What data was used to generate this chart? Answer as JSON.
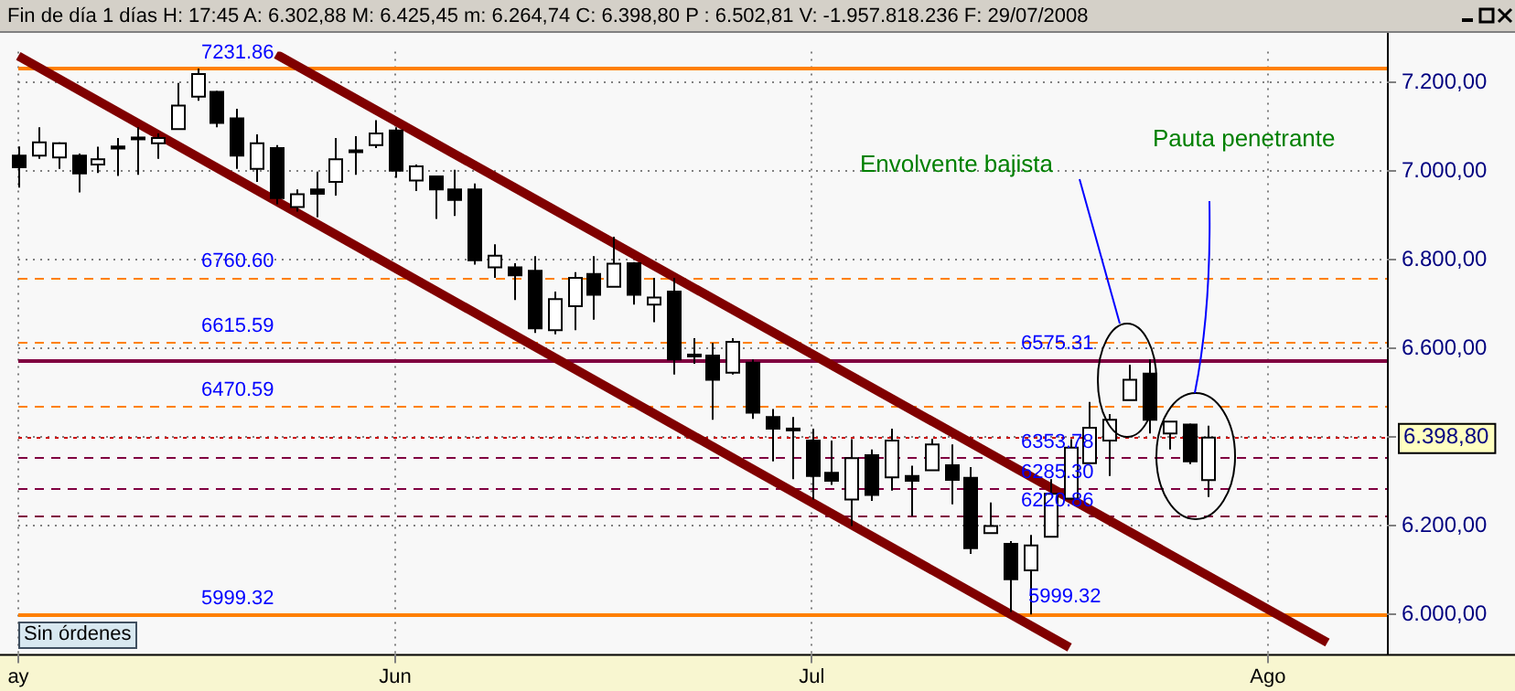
{
  "chart_data": {
    "type": "candlestick",
    "title": "Fin de día 1 días H: 17:45 A: 6.302,88 M: 6.425,45 m: 6.264,74 C: 6.398,80 P : 6.502,81 V: -1.957.818.236 F: 29/07/2008",
    "categories": [
      "ay",
      null,
      null,
      null,
      null,
      null,
      null,
      null,
      null,
      null,
      null,
      null,
      null,
      null,
      null,
      null,
      null,
      null,
      null,
      "Jun",
      null,
      null,
      null,
      null,
      null,
      null,
      null,
      null,
      null,
      null,
      null,
      null,
      null,
      null,
      null,
      null,
      null,
      null,
      null,
      null,
      "Jul",
      null,
      null,
      null,
      null,
      null,
      null,
      null,
      null,
      null,
      null,
      null,
      null,
      null,
      null,
      null,
      null,
      null,
      null,
      null,
      null,
      null,
      null,
      "Ago",
      null,
      null,
      null,
      null,
      null,
      null
    ],
    "ohlc": [
      [
        7035,
        7056,
        6963,
        7009
      ],
      [
        7035,
        7099,
        7028,
        7065
      ],
      [
        7031,
        7065,
        7005,
        7063
      ],
      [
        7035,
        7040,
        6952,
        6995
      ],
      [
        7015,
        7055,
        6996,
        7027
      ],
      [
        7056,
        7075,
        6989,
        7051
      ],
      [
        7076,
        7099,
        6992,
        7074
      ],
      [
        7063,
        7085,
        7028,
        7075
      ],
      [
        7095,
        7199,
        7095,
        7148
      ],
      [
        7168,
        7231.86,
        7159,
        7219
      ],
      [
        7179,
        7181,
        7099,
        7109
      ],
      [
        7119,
        7141,
        7005,
        7035
      ],
      [
        7005,
        7083,
        6976,
        7063
      ],
      [
        7052,
        7059,
        6925,
        6939
      ],
      [
        6919,
        6959,
        6909,
        6948
      ],
      [
        6959,
        6999,
        6896,
        6949
      ],
      [
        6976,
        7075,
        6945,
        7027
      ],
      [
        7047,
        7079,
        6992,
        7045
      ],
      [
        7059,
        7115,
        7052,
        7085
      ],
      [
        7092,
        7099,
        6985,
        7001
      ],
      [
        6979,
        7015,
        6955,
        7011
      ],
      [
        6988,
        6990,
        6892,
        6959
      ],
      [
        6959,
        7003,
        6899,
        6935
      ],
      [
        6959,
        6972,
        6789,
        6799
      ],
      [
        6783,
        6835,
        6759,
        6809
      ],
      [
        6783,
        6792,
        6709,
        6765
      ],
      [
        6775,
        6808,
        6635,
        6645
      ],
      [
        6641,
        6728,
        6632,
        6711
      ],
      [
        6695,
        6772,
        6641,
        6759
      ],
      [
        6768,
        6808,
        6665,
        6721
      ],
      [
        6739,
        6852,
        6739,
        6791
      ],
      [
        6792,
        6795,
        6699,
        6721
      ],
      [
        6699,
        6759,
        6659,
        6715
      ],
      [
        6728,
        6759,
        6541,
        6575
      ],
      [
        6586,
        6623,
        6565,
        6585
      ],
      [
        6584,
        6612,
        6439,
        6529
      ],
      [
        6545,
        6623,
        6541,
        6615
      ],
      [
        6568,
        6575,
        6441,
        6455
      ],
      [
        6445,
        6463,
        6345,
        6419
      ],
      [
        6419,
        6445,
        6305,
        6417
      ],
      [
        6392,
        6419,
        6259,
        6312
      ],
      [
        6319,
        6392,
        6292,
        6301
      ],
      [
        6259,
        6395,
        6199,
        6352
      ],
      [
        6359,
        6372,
        6256,
        6269
      ],
      [
        6309,
        6419,
        6279,
        6392
      ],
      [
        6312,
        6335,
        6221,
        6301
      ],
      [
        6325,
        6396,
        6325,
        6383
      ],
      [
        6336,
        6383,
        6248,
        6303
      ],
      [
        6308,
        6332,
        6136,
        6149
      ],
      [
        6183,
        6252,
        6183,
        6199
      ],
      [
        6159,
        6165,
        6005,
        6079
      ],
      [
        6099,
        6179,
        5999.32,
        6155
      ],
      [
        6175,
        6305,
        6175,
        6272
      ],
      [
        6261,
        6395,
        6259,
        6376
      ],
      [
        6341,
        6479,
        6341,
        6421
      ],
      [
        6392,
        6452,
        6312,
        6439
      ],
      [
        6483,
        6563,
        6483,
        6529
      ],
      [
        6543,
        6575.31,
        6408,
        6439
      ],
      [
        6408,
        6435,
        6372,
        6435
      ],
      [
        6428,
        6430,
        6339,
        6345
      ],
      [
        6302.88,
        6425.45,
        6264.74,
        6398.8
      ],
      null,
      null,
      null,
      null,
      null,
      null,
      null,
      null,
      null
    ],
    "series": [
      {
        "type": "line",
        "color": "#800000",
        "values": [
          null,
          null,
          null,
          null,
          null,
          null,
          null,
          null,
          null,
          null,
          null,
          null,
          null,
          7264,
          null,
          null,
          null,
          null,
          null,
          null,
          null,
          null,
          null,
          null,
          null,
          null,
          null,
          null,
          null,
          null,
          null,
          null,
          null,
          null,
          null,
          null,
          null,
          null,
          null,
          null,
          null,
          null,
          null,
          null,
          null,
          null,
          null,
          null,
          null,
          null,
          null,
          null,
          null,
          null,
          null,
          null,
          null,
          null,
          null,
          null,
          null,
          null,
          null,
          null,
          null,
          null,
          5936,
          null,
          null,
          null
        ]
      },
      {
        "type": "line",
        "color": "#800000",
        "values": [
          7260,
          null,
          null,
          null,
          null,
          null,
          null,
          null,
          null,
          null,
          null,
          null,
          null,
          null,
          null,
          null,
          null,
          null,
          null,
          null,
          null,
          null,
          null,
          null,
          null,
          null,
          null,
          null,
          null,
          null,
          null,
          null,
          null,
          null,
          null,
          null,
          null,
          null,
          null,
          null,
          null,
          null,
          null,
          null,
          null,
          null,
          null,
          null,
          null,
          null,
          null,
          null,
          null,
          5925,
          null,
          null,
          null,
          null,
          null,
          null,
          null,
          null,
          null,
          null,
          null,
          null,
          null,
          null,
          null,
          null
        ]
      }
    ],
    "ylim": [
      5910,
      7270
    ],
    "yticks": [
      {
        "value": 6000,
        "label": "6.000,00"
      },
      {
        "value": 6200,
        "label": "6.200,00"
      },
      {
        "value": 6400,
        "label": null
      },
      {
        "value": 6600,
        "label": "6.600,00"
      },
      {
        "value": 6800,
        "label": "6.800,00"
      },
      {
        "value": 7000,
        "label": "7.000,00"
      },
      {
        "value": 7200,
        "label": "7.200,00"
      }
    ],
    "grid": true,
    "ref_lines": [
      {
        "axis": "y",
        "value": 7231.86,
        "label": "7231.86",
        "color": "#ff8000",
        "line_style": "solid"
      },
      {
        "axis": "y",
        "value": 6760.6,
        "label": "6760.60",
        "color": "#ff8000",
        "line_style": "dashed"
      },
      {
        "axis": "y",
        "value": 6615.59,
        "label": "6615.59",
        "color": "#ff8000",
        "line_style": "dashed"
      },
      {
        "axis": "y",
        "value": 6470.59,
        "label": "6470.59",
        "color": "#ff8000",
        "line_style": "dashed"
      },
      {
        "axis": "y",
        "value": 5999.32,
        "label": "5999.32",
        "color": "#ff8000",
        "line_style": "solid"
      },
      {
        "axis": "y",
        "value": 6575.31,
        "label": "6575.31",
        "color": "#800040",
        "line_style": "solid"
      },
      {
        "axis": "y",
        "value": 6353.78,
        "label": "6353.78",
        "color": "#800040",
        "line_style": "dashed"
      },
      {
        "axis": "y",
        "value": 6285.3,
        "label": "6285.30",
        "color": "#800040",
        "line_style": "dashed"
      },
      {
        "axis": "y",
        "value": 6220.86,
        "label": "6220.86",
        "color": "#800040",
        "line_style": "dashed"
      },
      {
        "axis": "y",
        "value": 6398.8,
        "label": "6.398,80",
        "color": "#cc0000",
        "line_style": "dotted"
      }
    ],
    "annotations": [
      "Envolvente bajista",
      "Pauta penetrante",
      "Sin órdenes",
      {
        "text": "5999.32",
        "y": 5999.32
      }
    ]
  }
}
